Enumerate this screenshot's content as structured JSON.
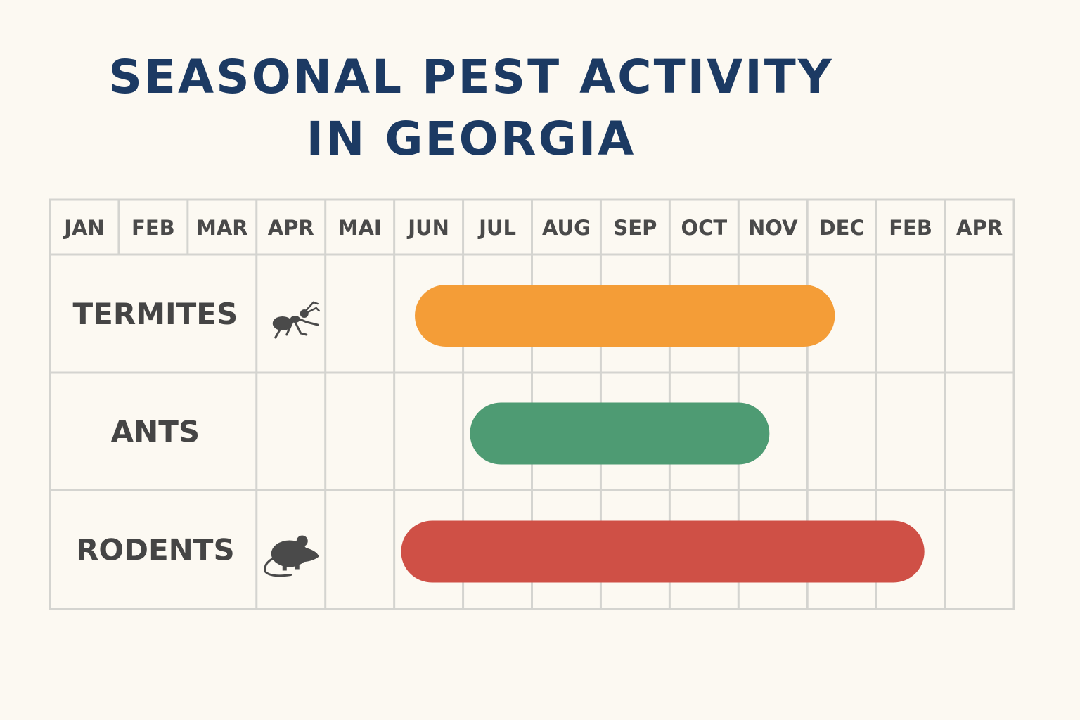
{
  "chart_data": {
    "type": "gantt",
    "title": [
      "SEASONAL PEST ACTIVITY",
      "IN GEORGIA"
    ],
    "months": [
      "JAN",
      "FEB",
      "MAR",
      "APR",
      "MAI",
      "JUN",
      "JUL",
      "AUG",
      "SEP",
      "OCT",
      "NOV",
      "DEC",
      "FEB",
      "APR"
    ],
    "rows": [
      {
        "label": "TERMITES",
        "icon": "ant-icon",
        "start": 5.3,
        "end": 11.4,
        "color": "#f49d37"
      },
      {
        "label": "ANTS",
        "icon": "",
        "start": 6.1,
        "end": 10.45,
        "color": "#4e9b73"
      },
      {
        "label": "RODENTS",
        "icon": "mouse-icon",
        "start": 5.1,
        "end": 12.7,
        "color": "#cf5046"
      }
    ],
    "grid": true
  }
}
